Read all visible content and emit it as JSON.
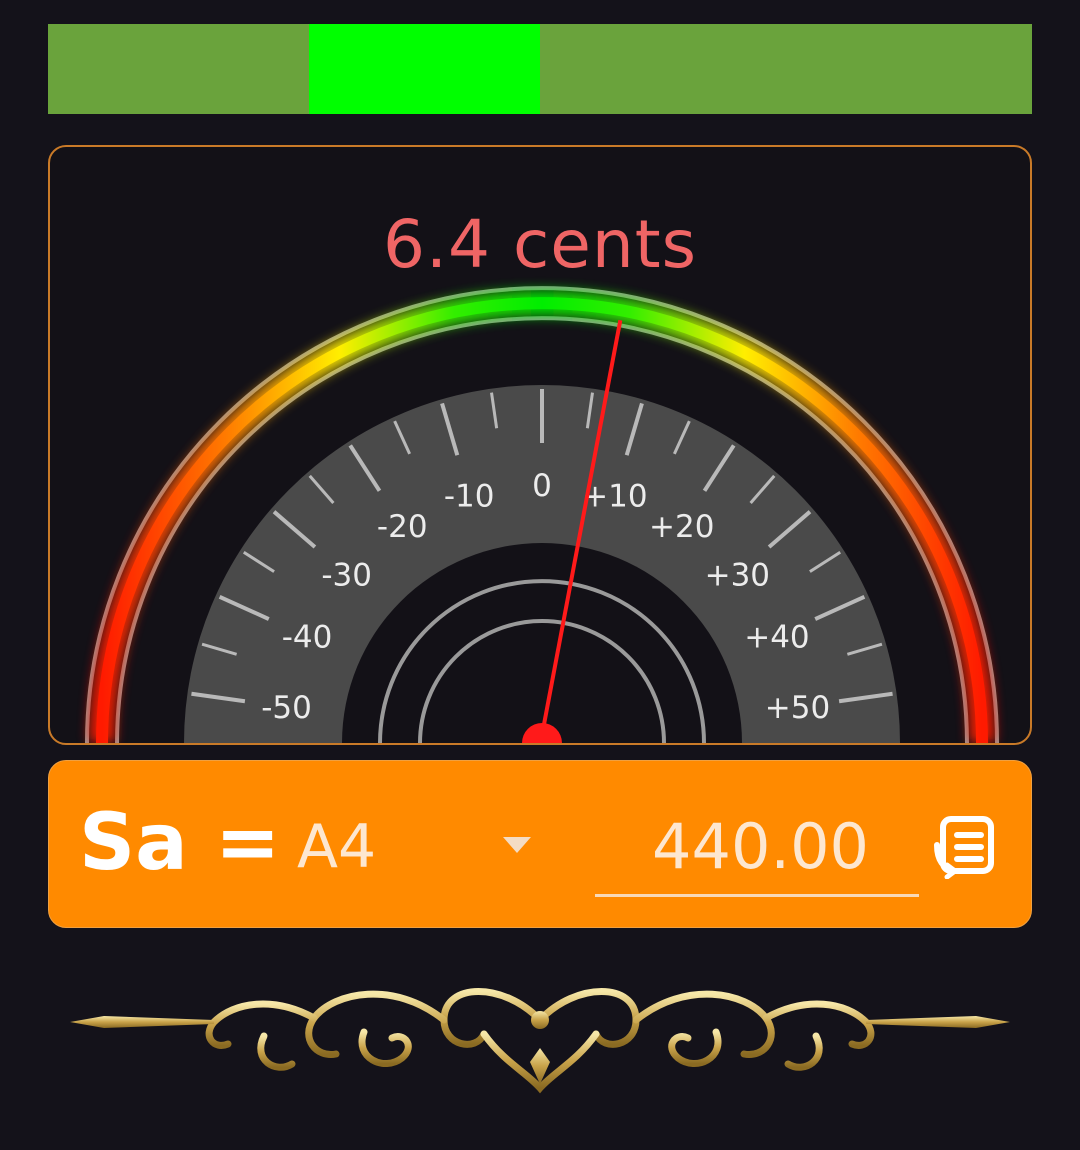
{
  "pitch_indicator": {
    "window_start": 0.265,
    "window_end": 0.5,
    "track_color": "#6aa33c",
    "window_color": "#00ff00"
  },
  "meter": {
    "cents_label": "6.4 cents",
    "cents_value": 6.4,
    "tick_labels": [
      "-50",
      "-40",
      "-30",
      "-20",
      "-10",
      "0",
      "+10",
      "+20",
      "+30",
      "+40",
      "+50"
    ],
    "needle_color": "#ff1a1a"
  },
  "tone": {
    "sa_label": "Sa =",
    "note": "A4",
    "frequency": "440.00",
    "icon": "list-icon",
    "accent_color": "#ff8a00"
  },
  "ornament": {
    "icon": "gold-flourish-ornament"
  }
}
